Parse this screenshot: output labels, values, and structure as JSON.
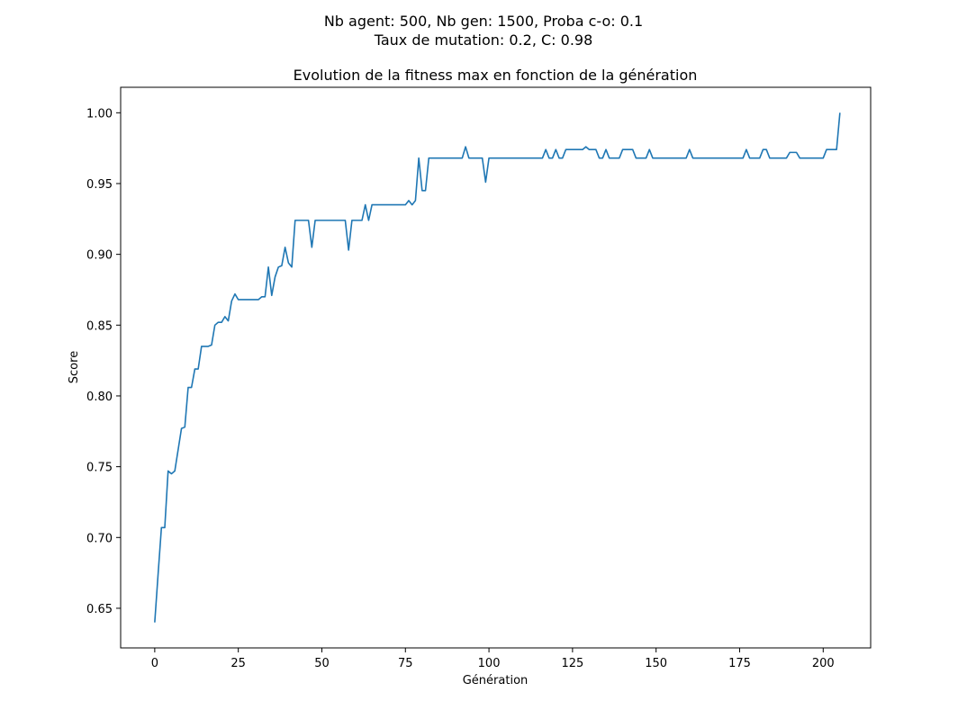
{
  "suptitle": {
    "line1": "Nb agent: 500, Nb gen: 1500, Proba c-o: 0.1",
    "line2": "Taux de mutation: 0.2, C: 0.98"
  },
  "chart_data": {
    "type": "line",
    "title": "Evolution de la fitness max en fonction de la génération",
    "xlabel": "Génération",
    "ylabel": "Score",
    "xlim": [
      -10.2,
      214.2
    ],
    "ylim": [
      0.622,
      1.018
    ],
    "xticks": [
      0,
      25,
      50,
      75,
      100,
      125,
      150,
      175,
      200
    ],
    "yticks": [
      0.65,
      0.7,
      0.75,
      0.8,
      0.85,
      0.9,
      0.95,
      1.0
    ],
    "ytick_labels": [
      "0.65",
      "0.70",
      "0.75",
      "0.80",
      "0.85",
      "0.90",
      "0.95",
      "1.00"
    ],
    "grid": false,
    "series": [
      {
        "color": "#1f77b4",
        "points": [
          [
            0,
            0.64
          ],
          [
            1,
            0.674
          ],
          [
            2,
            0.707
          ],
          [
            3,
            0.707
          ],
          [
            4,
            0.747
          ],
          [
            5,
            0.745
          ],
          [
            6,
            0.747
          ],
          [
            7,
            0.762
          ],
          [
            8,
            0.777
          ],
          [
            9,
            0.778
          ],
          [
            10,
            0.806
          ],
          [
            11,
            0.806
          ],
          [
            12,
            0.819
          ],
          [
            13,
            0.819
          ],
          [
            14,
            0.835
          ],
          [
            15,
            0.835
          ],
          [
            16,
            0.835
          ],
          [
            17,
            0.836
          ],
          [
            18,
            0.85
          ],
          [
            19,
            0.852
          ],
          [
            20,
            0.852
          ],
          [
            21,
            0.856
          ],
          [
            22,
            0.853
          ],
          [
            23,
            0.867
          ],
          [
            24,
            0.872
          ],
          [
            25,
            0.868
          ],
          [
            26,
            0.868
          ],
          [
            27,
            0.868
          ],
          [
            28,
            0.868
          ],
          [
            29,
            0.868
          ],
          [
            30,
            0.868
          ],
          [
            31,
            0.868
          ],
          [
            32,
            0.87
          ],
          [
            33,
            0.87
          ],
          [
            34,
            0.891
          ],
          [
            35,
            0.871
          ],
          [
            36,
            0.884
          ],
          [
            37,
            0.891
          ],
          [
            38,
            0.892
          ],
          [
            39,
            0.905
          ],
          [
            40,
            0.894
          ],
          [
            41,
            0.891
          ],
          [
            42,
            0.924
          ],
          [
            43,
            0.924
          ],
          [
            44,
            0.924
          ],
          [
            45,
            0.924
          ],
          [
            46,
            0.924
          ],
          [
            47,
            0.905
          ],
          [
            48,
            0.924
          ],
          [
            49,
            0.924
          ],
          [
            50,
            0.924
          ],
          [
            51,
            0.924
          ],
          [
            52,
            0.924
          ],
          [
            53,
            0.924
          ],
          [
            54,
            0.924
          ],
          [
            55,
            0.924
          ],
          [
            56,
            0.924
          ],
          [
            57,
            0.924
          ],
          [
            58,
            0.903
          ],
          [
            59,
            0.924
          ],
          [
            60,
            0.924
          ],
          [
            61,
            0.924
          ],
          [
            62,
            0.924
          ],
          [
            63,
            0.935
          ],
          [
            64,
            0.924
          ],
          [
            65,
            0.935
          ],
          [
            66,
            0.935
          ],
          [
            67,
            0.935
          ],
          [
            68,
            0.935
          ],
          [
            69,
            0.935
          ],
          [
            70,
            0.935
          ],
          [
            71,
            0.935
          ],
          [
            72,
            0.935
          ],
          [
            73,
            0.935
          ],
          [
            74,
            0.935
          ],
          [
            75,
            0.935
          ],
          [
            76,
            0.938
          ],
          [
            77,
            0.935
          ],
          [
            78,
            0.938
          ],
          [
            79,
            0.968
          ],
          [
            80,
            0.945
          ],
          [
            81,
            0.945
          ],
          [
            82,
            0.968
          ],
          [
            83,
            0.968
          ],
          [
            84,
            0.968
          ],
          [
            85,
            0.968
          ],
          [
            86,
            0.968
          ],
          [
            87,
            0.968
          ],
          [
            88,
            0.968
          ],
          [
            89,
            0.968
          ],
          [
            90,
            0.968
          ],
          [
            91,
            0.968
          ],
          [
            92,
            0.968
          ],
          [
            93,
            0.976
          ],
          [
            94,
            0.968
          ],
          [
            95,
            0.968
          ],
          [
            96,
            0.968
          ],
          [
            97,
            0.968
          ],
          [
            98,
            0.968
          ],
          [
            99,
            0.951
          ],
          [
            100,
            0.968
          ],
          [
            101,
            0.968
          ],
          [
            102,
            0.968
          ],
          [
            103,
            0.968
          ],
          [
            104,
            0.968
          ],
          [
            105,
            0.968
          ],
          [
            106,
            0.968
          ],
          [
            107,
            0.968
          ],
          [
            108,
            0.968
          ],
          [
            109,
            0.968
          ],
          [
            110,
            0.968
          ],
          [
            111,
            0.968
          ],
          [
            112,
            0.968
          ],
          [
            113,
            0.968
          ],
          [
            114,
            0.968
          ],
          [
            115,
            0.968
          ],
          [
            116,
            0.968
          ],
          [
            117,
            0.974
          ],
          [
            118,
            0.968
          ],
          [
            119,
            0.968
          ],
          [
            120,
            0.974
          ],
          [
            121,
            0.968
          ],
          [
            122,
            0.968
          ],
          [
            123,
            0.974
          ],
          [
            124,
            0.974
          ],
          [
            125,
            0.974
          ],
          [
            126,
            0.974
          ],
          [
            127,
            0.974
          ],
          [
            128,
            0.974
          ],
          [
            129,
            0.976
          ],
          [
            130,
            0.974
          ],
          [
            131,
            0.974
          ],
          [
            132,
            0.974
          ],
          [
            133,
            0.968
          ],
          [
            134,
            0.968
          ],
          [
            135,
            0.974
          ],
          [
            136,
            0.968
          ],
          [
            137,
            0.968
          ],
          [
            138,
            0.968
          ],
          [
            139,
            0.968
          ],
          [
            140,
            0.974
          ],
          [
            141,
            0.974
          ],
          [
            142,
            0.974
          ],
          [
            143,
            0.974
          ],
          [
            144,
            0.968
          ],
          [
            145,
            0.968
          ],
          [
            146,
            0.968
          ],
          [
            147,
            0.968
          ],
          [
            148,
            0.974
          ],
          [
            149,
            0.968
          ],
          [
            150,
            0.968
          ],
          [
            151,
            0.968
          ],
          [
            152,
            0.968
          ],
          [
            153,
            0.968
          ],
          [
            154,
            0.968
          ],
          [
            155,
            0.968
          ],
          [
            156,
            0.968
          ],
          [
            157,
            0.968
          ],
          [
            158,
            0.968
          ],
          [
            159,
            0.968
          ],
          [
            160,
            0.974
          ],
          [
            161,
            0.968
          ],
          [
            162,
            0.968
          ],
          [
            163,
            0.968
          ],
          [
            164,
            0.968
          ],
          [
            165,
            0.968
          ],
          [
            166,
            0.968
          ],
          [
            167,
            0.968
          ],
          [
            168,
            0.968
          ],
          [
            169,
            0.968
          ],
          [
            170,
            0.968
          ],
          [
            171,
            0.968
          ],
          [
            172,
            0.968
          ],
          [
            173,
            0.968
          ],
          [
            174,
            0.968
          ],
          [
            175,
            0.968
          ],
          [
            176,
            0.968
          ],
          [
            177,
            0.974
          ],
          [
            178,
            0.968
          ],
          [
            179,
            0.968
          ],
          [
            180,
            0.968
          ],
          [
            181,
            0.968
          ],
          [
            182,
            0.974
          ],
          [
            183,
            0.974
          ],
          [
            184,
            0.968
          ],
          [
            185,
            0.968
          ],
          [
            186,
            0.968
          ],
          [
            187,
            0.968
          ],
          [
            188,
            0.968
          ],
          [
            189,
            0.968
          ],
          [
            190,
            0.972
          ],
          [
            191,
            0.972
          ],
          [
            192,
            0.972
          ],
          [
            193,
            0.968
          ],
          [
            194,
            0.968
          ],
          [
            195,
            0.968
          ],
          [
            196,
            0.968
          ],
          [
            197,
            0.968
          ],
          [
            198,
            0.968
          ],
          [
            199,
            0.968
          ],
          [
            200,
            0.968
          ],
          [
            201,
            0.974
          ],
          [
            202,
            0.974
          ],
          [
            203,
            0.974
          ],
          [
            204,
            0.974
          ],
          [
            205,
            1.0
          ]
        ]
      }
    ]
  }
}
